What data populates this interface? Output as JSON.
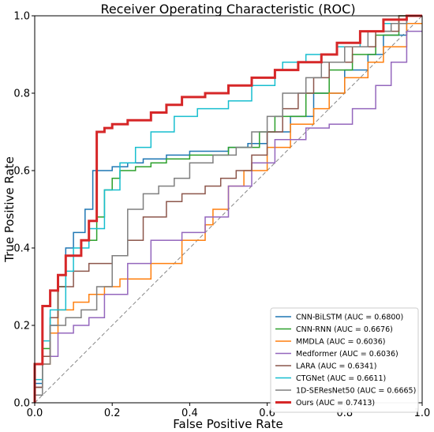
{
  "chart_data": {
    "type": "line",
    "title": "Receiver Operating Characteristic (ROC)",
    "xlabel": "False Positive Rate",
    "ylabel": "True Positive Rate",
    "xlim": [
      0.0,
      1.0
    ],
    "ylim": [
      0.0,
      1.0
    ],
    "xticks": [
      "0.0",
      "0.2",
      "0.4",
      "0.6",
      "0.8",
      "1.0"
    ],
    "yticks": [
      "0.0",
      "0.2",
      "0.4",
      "0.6",
      "0.8",
      "1.0"
    ],
    "grid": false,
    "legend_position": "lower-right",
    "diagonal": {
      "color": "#888888",
      "dash": true
    },
    "series": [
      {
        "name": "CNN-BiLSTM (AUC = 0.6800)",
        "color": "#1f77b4",
        "width": 1.5,
        "x": [
          0,
          0,
          0.02,
          0.02,
          0.04,
          0.04,
          0.06,
          0.06,
          0.08,
          0.08,
          0.1,
          0.1,
          0.13,
          0.13,
          0.15,
          0.15,
          0.2,
          0.2,
          0.24,
          0.24,
          0.28,
          0.28,
          0.34,
          0.34,
          0.4,
          0.4,
          0.5,
          0.5,
          0.55,
          0.55,
          0.6,
          0.6,
          0.66,
          0.66,
          0.72,
          0.72,
          0.8,
          0.8,
          0.86,
          0.86,
          0.9,
          0.9,
          0.96,
          0.96,
          1
        ],
        "y": [
          0,
          0.05,
          0.05,
          0.12,
          0.12,
          0.2,
          0.2,
          0.3,
          0.3,
          0.4,
          0.4,
          0.44,
          0.44,
          0.5,
          0.5,
          0.6,
          0.6,
          0.61,
          0.61,
          0.62,
          0.62,
          0.63,
          0.63,
          0.64,
          0.64,
          0.65,
          0.65,
          0.66,
          0.66,
          0.67,
          0.67,
          0.7,
          0.7,
          0.74,
          0.74,
          0.8,
          0.8,
          0.86,
          0.86,
          0.9,
          0.9,
          0.95,
          0.95,
          1,
          1
        ]
      },
      {
        "name": "CNN-RNN (AUC = 0.6676)",
        "color": "#2ca02c",
        "width": 1.5,
        "x": [
          0,
          0,
          0.02,
          0.02,
          0.04,
          0.04,
          0.06,
          0.06,
          0.08,
          0.08,
          0.12,
          0.12,
          0.16,
          0.16,
          0.18,
          0.18,
          0.2,
          0.2,
          0.22,
          0.22,
          0.26,
          0.26,
          0.3,
          0.3,
          0.34,
          0.34,
          0.4,
          0.4,
          0.5,
          0.5,
          0.58,
          0.58,
          0.62,
          0.62,
          0.7,
          0.7,
          0.76,
          0.76,
          0.82,
          0.82,
          0.88,
          0.88,
          0.94,
          0.94,
          1
        ],
        "y": [
          0,
          0.04,
          0.04,
          0.14,
          0.14,
          0.22,
          0.22,
          0.3,
          0.3,
          0.38,
          0.38,
          0.42,
          0.42,
          0.48,
          0.48,
          0.55,
          0.55,
          0.58,
          0.58,
          0.6,
          0.6,
          0.61,
          0.61,
          0.62,
          0.62,
          0.63,
          0.63,
          0.64,
          0.64,
          0.66,
          0.66,
          0.7,
          0.7,
          0.74,
          0.74,
          0.8,
          0.8,
          0.86,
          0.86,
          0.9,
          0.9,
          0.95,
          0.95,
          1,
          1
        ]
      },
      {
        "name": "MMDLA (AUC = 0.6036)",
        "color": "#ff7f0e",
        "width": 1.5,
        "x": [
          0,
          0,
          0.02,
          0.02,
          0.04,
          0.04,
          0.06,
          0.06,
          0.1,
          0.1,
          0.14,
          0.14,
          0.18,
          0.18,
          0.22,
          0.22,
          0.3,
          0.3,
          0.38,
          0.38,
          0.44,
          0.44,
          0.46,
          0.46,
          0.5,
          0.5,
          0.54,
          0.54,
          0.6,
          0.6,
          0.66,
          0.66,
          0.72,
          0.72,
          0.76,
          0.76,
          0.8,
          0.8,
          0.86,
          0.86,
          0.9,
          0.9,
          0.96,
          0.96,
          1
        ],
        "y": [
          0,
          0.04,
          0.04,
          0.1,
          0.1,
          0.18,
          0.18,
          0.24,
          0.24,
          0.26,
          0.26,
          0.28,
          0.28,
          0.3,
          0.3,
          0.32,
          0.32,
          0.36,
          0.36,
          0.42,
          0.42,
          0.46,
          0.46,
          0.5,
          0.5,
          0.56,
          0.56,
          0.6,
          0.6,
          0.66,
          0.66,
          0.72,
          0.72,
          0.76,
          0.76,
          0.8,
          0.8,
          0.84,
          0.84,
          0.88,
          0.88,
          0.92,
          0.92,
          0.98,
          0.98
        ]
      },
      {
        "name": "Medformer (AUC = 0.6036)",
        "color": "#9467bd",
        "width": 1.5,
        "x": [
          0,
          0,
          0.02,
          0.02,
          0.06,
          0.06,
          0.1,
          0.1,
          0.14,
          0.14,
          0.18,
          0.18,
          0.24,
          0.24,
          0.3,
          0.3,
          0.38,
          0.38,
          0.44,
          0.44,
          0.5,
          0.5,
          0.56,
          0.56,
          0.62,
          0.62,
          0.7,
          0.7,
          0.76,
          0.76,
          0.82,
          0.82,
          0.88,
          0.88,
          0.92,
          0.92,
          0.96,
          0.96,
          1
        ],
        "y": [
          0,
          0.04,
          0.04,
          0.12,
          0.12,
          0.18,
          0.18,
          0.2,
          0.2,
          0.22,
          0.22,
          0.28,
          0.28,
          0.36,
          0.36,
          0.42,
          0.42,
          0.44,
          0.44,
          0.48,
          0.48,
          0.56,
          0.56,
          0.62,
          0.62,
          0.68,
          0.68,
          0.71,
          0.71,
          0.72,
          0.72,
          0.76,
          0.76,
          0.82,
          0.82,
          0.88,
          0.88,
          0.96,
          0.96
        ]
      },
      {
        "name": "LARA (AUC = 0.6341)",
        "color": "#8c564b",
        "width": 1.5,
        "x": [
          0,
          0,
          0.02,
          0.02,
          0.04,
          0.04,
          0.06,
          0.06,
          0.1,
          0.1,
          0.14,
          0.14,
          0.2,
          0.2,
          0.24,
          0.24,
          0.28,
          0.28,
          0.34,
          0.34,
          0.38,
          0.38,
          0.44,
          0.44,
          0.48,
          0.48,
          0.52,
          0.52,
          0.56,
          0.56,
          0.6,
          0.6,
          0.64,
          0.64,
          0.68,
          0.68,
          0.72,
          0.72,
          0.76,
          0.76,
          0.82,
          0.82,
          0.88,
          0.88,
          0.94,
          0.94,
          1
        ],
        "y": [
          0,
          0.04,
          0.04,
          0.12,
          0.12,
          0.22,
          0.22,
          0.3,
          0.3,
          0.34,
          0.34,
          0.36,
          0.36,
          0.38,
          0.38,
          0.42,
          0.42,
          0.48,
          0.48,
          0.52,
          0.52,
          0.54,
          0.54,
          0.56,
          0.56,
          0.58,
          0.58,
          0.6,
          0.6,
          0.64,
          0.64,
          0.7,
          0.7,
          0.76,
          0.76,
          0.8,
          0.8,
          0.84,
          0.84,
          0.88,
          0.88,
          0.92,
          0.92,
          0.96,
          0.96,
          1,
          1
        ]
      },
      {
        "name": "CTGNet (AUC = 0.6611)",
        "color": "#17becf",
        "width": 1.5,
        "x": [
          0,
          0,
          0.02,
          0.02,
          0.04,
          0.04,
          0.08,
          0.08,
          0.1,
          0.1,
          0.14,
          0.14,
          0.18,
          0.18,
          0.22,
          0.22,
          0.26,
          0.26,
          0.3,
          0.3,
          0.36,
          0.36,
          0.42,
          0.42,
          0.5,
          0.5,
          0.56,
          0.56,
          0.62,
          0.62,
          0.64,
          0.64,
          0.7,
          0.7,
          0.78,
          0.78,
          0.84,
          0.84,
          0.9,
          0.9,
          0.96,
          0.96,
          1
        ],
        "y": [
          0,
          0.06,
          0.06,
          0.16,
          0.16,
          0.24,
          0.24,
          0.34,
          0.34,
          0.4,
          0.4,
          0.45,
          0.45,
          0.55,
          0.55,
          0.62,
          0.62,
          0.66,
          0.66,
          0.7,
          0.7,
          0.74,
          0.74,
          0.76,
          0.76,
          0.78,
          0.78,
          0.82,
          0.82,
          0.86,
          0.86,
          0.88,
          0.88,
          0.9,
          0.9,
          0.92,
          0.92,
          0.96,
          0.96,
          0.98,
          0.98,
          1,
          1
        ]
      },
      {
        "name": "1D-SEResNet50 (AUC = 0.6665)",
        "color": "#7f7f7f",
        "width": 1.5,
        "x": [
          0,
          0,
          0.02,
          0.02,
          0.04,
          0.04,
          0.08,
          0.08,
          0.12,
          0.12,
          0.16,
          0.16,
          0.2,
          0.2,
          0.24,
          0.24,
          0.28,
          0.28,
          0.32,
          0.32,
          0.36,
          0.36,
          0.4,
          0.4,
          0.46,
          0.46,
          0.52,
          0.52,
          0.56,
          0.56,
          0.6,
          0.6,
          0.64,
          0.64,
          0.7,
          0.7,
          0.74,
          0.74,
          0.8,
          0.8,
          0.86,
          0.86,
          0.92,
          0.92,
          0.96,
          0.96,
          1
        ],
        "y": [
          0,
          0.02,
          0.02,
          0.1,
          0.1,
          0.2,
          0.2,
          0.22,
          0.22,
          0.24,
          0.24,
          0.3,
          0.3,
          0.38,
          0.38,
          0.5,
          0.5,
          0.54,
          0.54,
          0.56,
          0.56,
          0.58,
          0.58,
          0.62,
          0.62,
          0.64,
          0.64,
          0.66,
          0.66,
          0.7,
          0.7,
          0.74,
          0.74,
          0.8,
          0.8,
          0.84,
          0.84,
          0.88,
          0.88,
          0.92,
          0.92,
          0.96,
          0.96,
          0.98,
          0.98,
          1,
          1
        ]
      },
      {
        "name": "Ours (AUC = 0.7413)",
        "color": "#d62728",
        "width": 3,
        "x": [
          0,
          0,
          0.02,
          0.02,
          0.04,
          0.04,
          0.06,
          0.06,
          0.08,
          0.08,
          0.12,
          0.12,
          0.14,
          0.14,
          0.16,
          0.16,
          0.18,
          0.18,
          0.2,
          0.2,
          0.24,
          0.24,
          0.3,
          0.3,
          0.34,
          0.34,
          0.38,
          0.38,
          0.44,
          0.44,
          0.5,
          0.5,
          0.56,
          0.56,
          0.62,
          0.62,
          0.68,
          0.68,
          0.74,
          0.74,
          0.78,
          0.78,
          0.84,
          0.84,
          0.9,
          0.9,
          0.96,
          0.96,
          1
        ],
        "y": [
          0,
          0.1,
          0.1,
          0.25,
          0.25,
          0.29,
          0.29,
          0.33,
          0.33,
          0.38,
          0.38,
          0.42,
          0.42,
          0.47,
          0.47,
          0.7,
          0.7,
          0.71,
          0.71,
          0.72,
          0.72,
          0.73,
          0.73,
          0.75,
          0.75,
          0.77,
          0.77,
          0.79,
          0.79,
          0.8,
          0.8,
          0.82,
          0.82,
          0.84,
          0.84,
          0.86,
          0.86,
          0.88,
          0.88,
          0.9,
          0.9,
          0.93,
          0.93,
          0.96,
          0.96,
          0.99,
          0.99,
          1,
          1
        ]
      }
    ]
  }
}
